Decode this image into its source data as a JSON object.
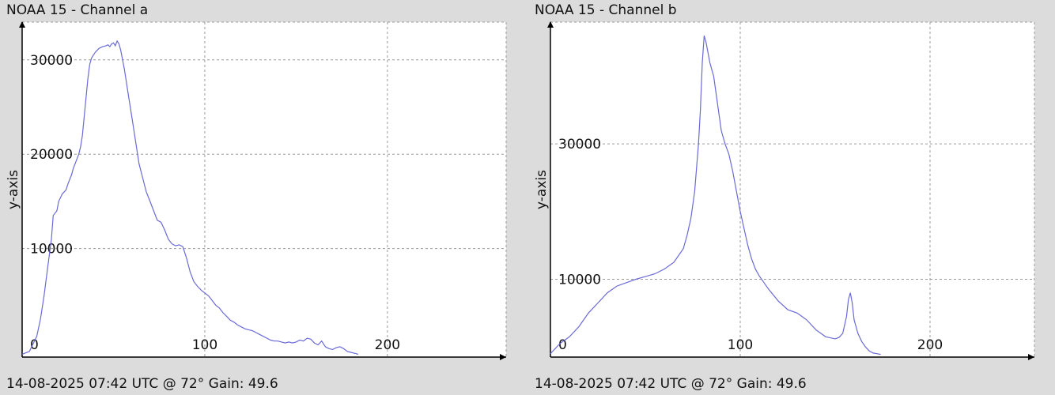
{
  "chart_data": [
    {
      "type": "line",
      "title": "NOAA 15 - Channel a",
      "footer": "14-08-2025 07:42 UTC @ 72° Gain: 49.6",
      "ylabel": "y-axis",
      "xlim": [
        0,
        265
      ],
      "ylim": [
        -1500,
        34000
      ],
      "xticks": [
        0,
        100,
        200
      ],
      "yticks": [
        10000,
        20000,
        30000
      ],
      "grid": true,
      "series": [
        {
          "color": "#6a6ad8",
          "x": [
            0,
            4,
            8,
            10,
            12,
            14,
            16,
            17,
            19,
            20,
            22,
            24,
            25,
            26,
            27,
            28,
            30,
            31,
            32,
            33,
            34,
            35,
            36,
            37,
            38,
            40,
            42,
            44,
            46,
            47,
            48,
            49,
            50,
            51,
            52,
            53,
            54,
            55,
            56,
            58,
            60,
            62,
            64,
            66,
            68,
            70,
            72,
            74,
            76,
            78,
            80,
            82,
            84,
            86,
            88,
            90,
            92,
            94,
            96,
            98,
            100,
            102,
            104,
            106,
            108,
            110,
            112,
            114,
            116,
            118,
            120,
            122,
            124,
            126,
            128,
            130,
            132,
            134,
            136,
            138,
            140,
            142,
            144,
            146,
            148,
            150,
            152,
            154,
            156,
            158,
            160,
            162,
            164,
            166,
            168,
            170,
            172,
            174,
            176,
            178,
            180,
            182,
            184
          ],
          "values": [
            -1200,
            -900,
            700,
            2500,
            5000,
            8000,
            11000,
            13500,
            14000,
            15000,
            15800,
            16200,
            16800,
            17300,
            17800,
            18500,
            19500,
            20000,
            20800,
            22000,
            24000,
            26000,
            28000,
            29500,
            30200,
            30800,
            31200,
            31400,
            31500,
            31600,
            31400,
            31700,
            31800,
            31500,
            32000,
            31700,
            31000,
            30000,
            29000,
            26500,
            24000,
            21500,
            19000,
            17500,
            16000,
            15000,
            14000,
            13000,
            12800,
            12000,
            11000,
            10500,
            10300,
            10400,
            10200,
            9000,
            7500,
            6500,
            6000,
            5600,
            5300,
            5000,
            4500,
            4000,
            3700,
            3200,
            2800,
            2400,
            2200,
            1900,
            1700,
            1500,
            1400,
            1300,
            1100,
            900,
            700,
            500,
            300,
            200,
            200,
            100,
            0,
            100,
            0,
            100,
            300,
            200,
            500,
            400,
            0,
            -200,
            200,
            -400,
            -600,
            -700,
            -500,
            -400,
            -600,
            -900,
            -1000,
            -1100,
            -1200
          ]
        }
      ]
    },
    {
      "type": "line",
      "title": "NOAA 15 - Channel b",
      "footer": "14-08-2025 07:42 UTC @ 72° Gain: 49.6",
      "ylabel": "y-axis",
      "xlim": [
        0,
        255
      ],
      "ylim": [
        -1500,
        48000
      ],
      "xticks": [
        0,
        100,
        200
      ],
      "yticks": [
        10000,
        30000
      ],
      "grid": true,
      "series": [
        {
          "color": "#6a6ad8",
          "x": [
            0,
            5,
            10,
            15,
            20,
            25,
            30,
            35,
            40,
            45,
            50,
            55,
            60,
            65,
            70,
            72,
            74,
            76,
            78,
            79,
            80,
            81,
            82,
            83,
            84,
            86,
            88,
            90,
            92,
            94,
            96,
            98,
            100,
            102,
            104,
            106,
            108,
            110,
            115,
            120,
            125,
            130,
            135,
            140,
            145,
            150,
            152,
            154,
            156,
            157,
            158,
            159,
            160,
            162,
            164,
            166,
            168,
            170,
            172,
            174
          ],
          "values": [
            -1000,
            500,
            1500,
            3000,
            5000,
            6500,
            8000,
            9000,
            9500,
            10000,
            10400,
            10800,
            11500,
            12500,
            14500,
            16500,
            19000,
            23000,
            30000,
            35000,
            42000,
            46000,
            45000,
            43500,
            42000,
            40000,
            36000,
            32000,
            30000,
            28500,
            26000,
            23000,
            20000,
            17500,
            15000,
            13000,
            11500,
            10500,
            8500,
            6800,
            5500,
            5000,
            4000,
            2500,
            1500,
            1200,
            1400,
            2000,
            4500,
            7000,
            8000,
            6500,
            4000,
            2000,
            800,
            0,
            -600,
            -900,
            -1000,
            -1100
          ]
        }
      ]
    }
  ]
}
